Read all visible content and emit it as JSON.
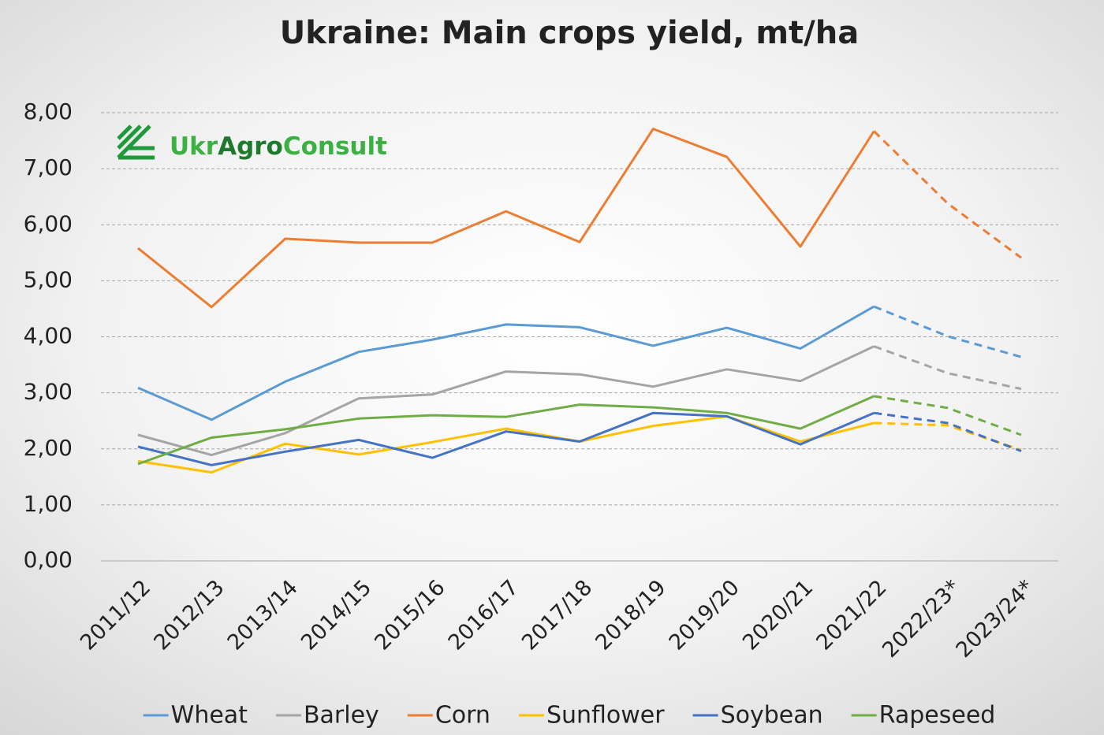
{
  "chart_data": {
    "type": "line",
    "title": "Ukraine: Main crops yield, mt/ha",
    "logo": [
      "Ukr",
      "Agro",
      "Consult"
    ],
    "categories": [
      "2011/12",
      "2012/13",
      "2013/14",
      "2014/15",
      "2015/16",
      "2016/17",
      "2017/18",
      "2018/19",
      "2019/20",
      "2020/21",
      "2021/22",
      "2022/23*",
      "2023/24*"
    ],
    "ylim": [
      0,
      8
    ],
    "yticks": [
      {
        "value": 0,
        "label": "0,00"
      },
      {
        "value": 1,
        "label": "1,00"
      },
      {
        "value": 2,
        "label": "2,00"
      },
      {
        "value": 3,
        "label": "3,00"
      },
      {
        "value": 4,
        "label": "4,00"
      },
      {
        "value": 5,
        "label": "5,00"
      },
      {
        "value": 6,
        "label": "6,00"
      },
      {
        "value": 7,
        "label": "7,00"
      },
      {
        "value": 8,
        "label": "8,00"
      }
    ],
    "grid": true,
    "legend": "bottom",
    "series": [
      {
        "name": "Wheat",
        "color": "#5b9bd5",
        "values": [
          3.09,
          2.52,
          3.2,
          3.73,
          3.95,
          4.22,
          4.17,
          3.84,
          4.16,
          3.79,
          4.54,
          4.01,
          3.64
        ]
      },
      {
        "name": "Barley",
        "color": "#a5a5a5",
        "values": [
          2.25,
          1.89,
          2.28,
          2.9,
          2.97,
          3.38,
          3.33,
          3.11,
          3.42,
          3.21,
          3.83,
          3.35,
          3.07
        ]
      },
      {
        "name": "Corn",
        "color": "#ed7d31",
        "values": [
          5.58,
          4.53,
          5.75,
          5.68,
          5.68,
          6.24,
          5.69,
          7.71,
          7.21,
          5.61,
          7.67,
          6.38,
          5.41
        ]
      },
      {
        "name": "Sunflower",
        "color": "#ffc000",
        "values": [
          1.78,
          1.58,
          2.09,
          1.9,
          2.12,
          2.36,
          2.13,
          2.41,
          2.58,
          2.13,
          2.46,
          2.42,
          1.98
        ]
      },
      {
        "name": "Soybean",
        "color": "#4472c4",
        "values": [
          2.04,
          1.71,
          1.95,
          2.16,
          1.84,
          2.31,
          2.13,
          2.64,
          2.58,
          2.08,
          2.64,
          2.46,
          1.96
        ]
      },
      {
        "name": "Rapeseed",
        "color": "#70ad47",
        "values": [
          1.73,
          2.2,
          2.35,
          2.54,
          2.6,
          2.57,
          2.79,
          2.74,
          2.64,
          2.36,
          2.94,
          2.73,
          2.25
        ]
      }
    ]
  }
}
